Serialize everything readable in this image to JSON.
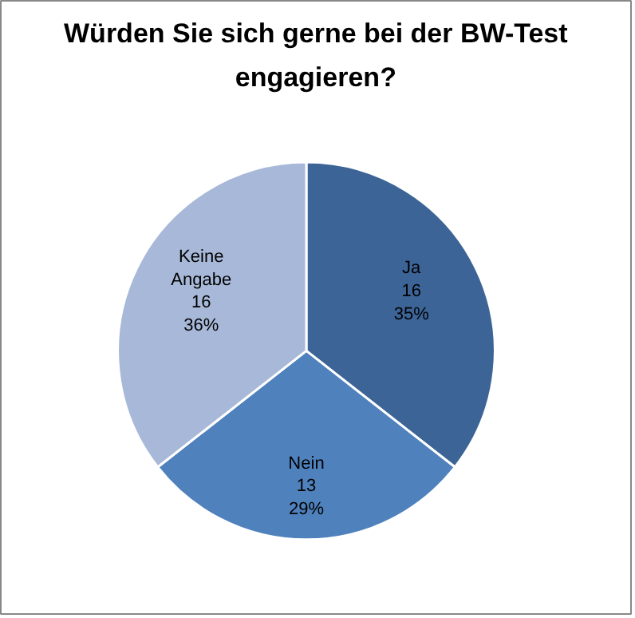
{
  "chart_data": {
    "type": "pie",
    "title": "Würden Sie sich gerne bei der BW-Test\nengagieren?",
    "categories": [
      "Ja",
      "Nein",
      "Keine Angabe"
    ],
    "values": [
      16,
      13,
      16
    ],
    "value_labels": [
      "16\n35%",
      "13\n29%",
      "16\n36%"
    ],
    "colors": [
      "#3c6497",
      "#4f81bd",
      "#a7b8d8"
    ],
    "legend": false
  }
}
